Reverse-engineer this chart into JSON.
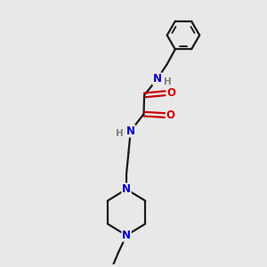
{
  "bg_color": "#e8e8e8",
  "bond_color": "#1a1a1a",
  "N_color": "#0000cc",
  "O_color": "#cc0000",
  "H_color": "#808080",
  "line_width": 1.6,
  "font_size_atom": 8.5,
  "fig_size": [
    3.0,
    3.0
  ],
  "dpi": 100,
  "xlim": [
    0,
    10
  ],
  "ylim": [
    0,
    10
  ]
}
